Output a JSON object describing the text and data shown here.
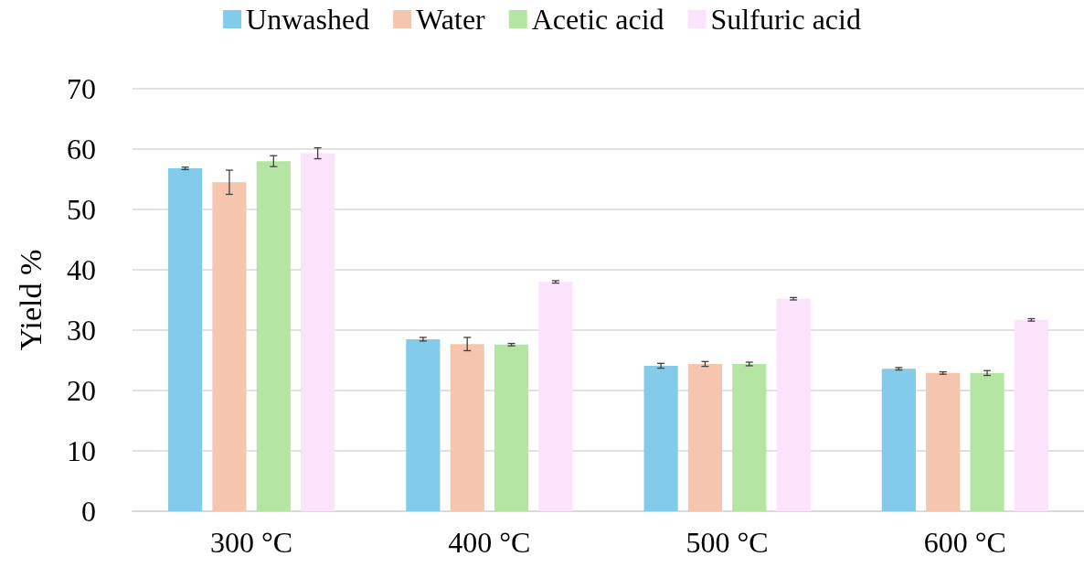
{
  "chart_data": {
    "type": "bar",
    "ylabel": "Yield %",
    "categories": [
      "300 °C",
      "400 °C",
      "500 °C",
      "600 °C"
    ],
    "series": [
      {
        "name": "Unwashed",
        "color": "#83cbeb",
        "values": [
          56.8,
          28.5,
          24.1,
          23.6
        ],
        "errors": [
          0.2,
          0.3,
          0.4,
          0.2
        ]
      },
      {
        "name": "Water",
        "color": "#f5c6ad",
        "values": [
          54.5,
          27.7,
          24.4,
          22.9
        ],
        "errors": [
          2.0,
          1.1,
          0.4,
          0.2
        ]
      },
      {
        "name": "Acetic acid",
        "color": "#b4e5a2",
        "values": [
          58.0,
          27.6,
          24.4,
          22.9
        ],
        "errors": [
          0.9,
          0.2,
          0.3,
          0.4
        ]
      },
      {
        "name": "Sulfuric acid",
        "color": "#fbe3fb",
        "values": [
          59.3,
          38.0,
          35.2,
          31.7
        ],
        "errors": [
          0.9,
          0.2,
          0.2,
          0.2
        ]
      }
    ],
    "ylim": [
      0,
      70
    ],
    "yticks": [
      0,
      10,
      20,
      30,
      40,
      50,
      60,
      70
    ],
    "grid": "y",
    "legend": "top"
  }
}
